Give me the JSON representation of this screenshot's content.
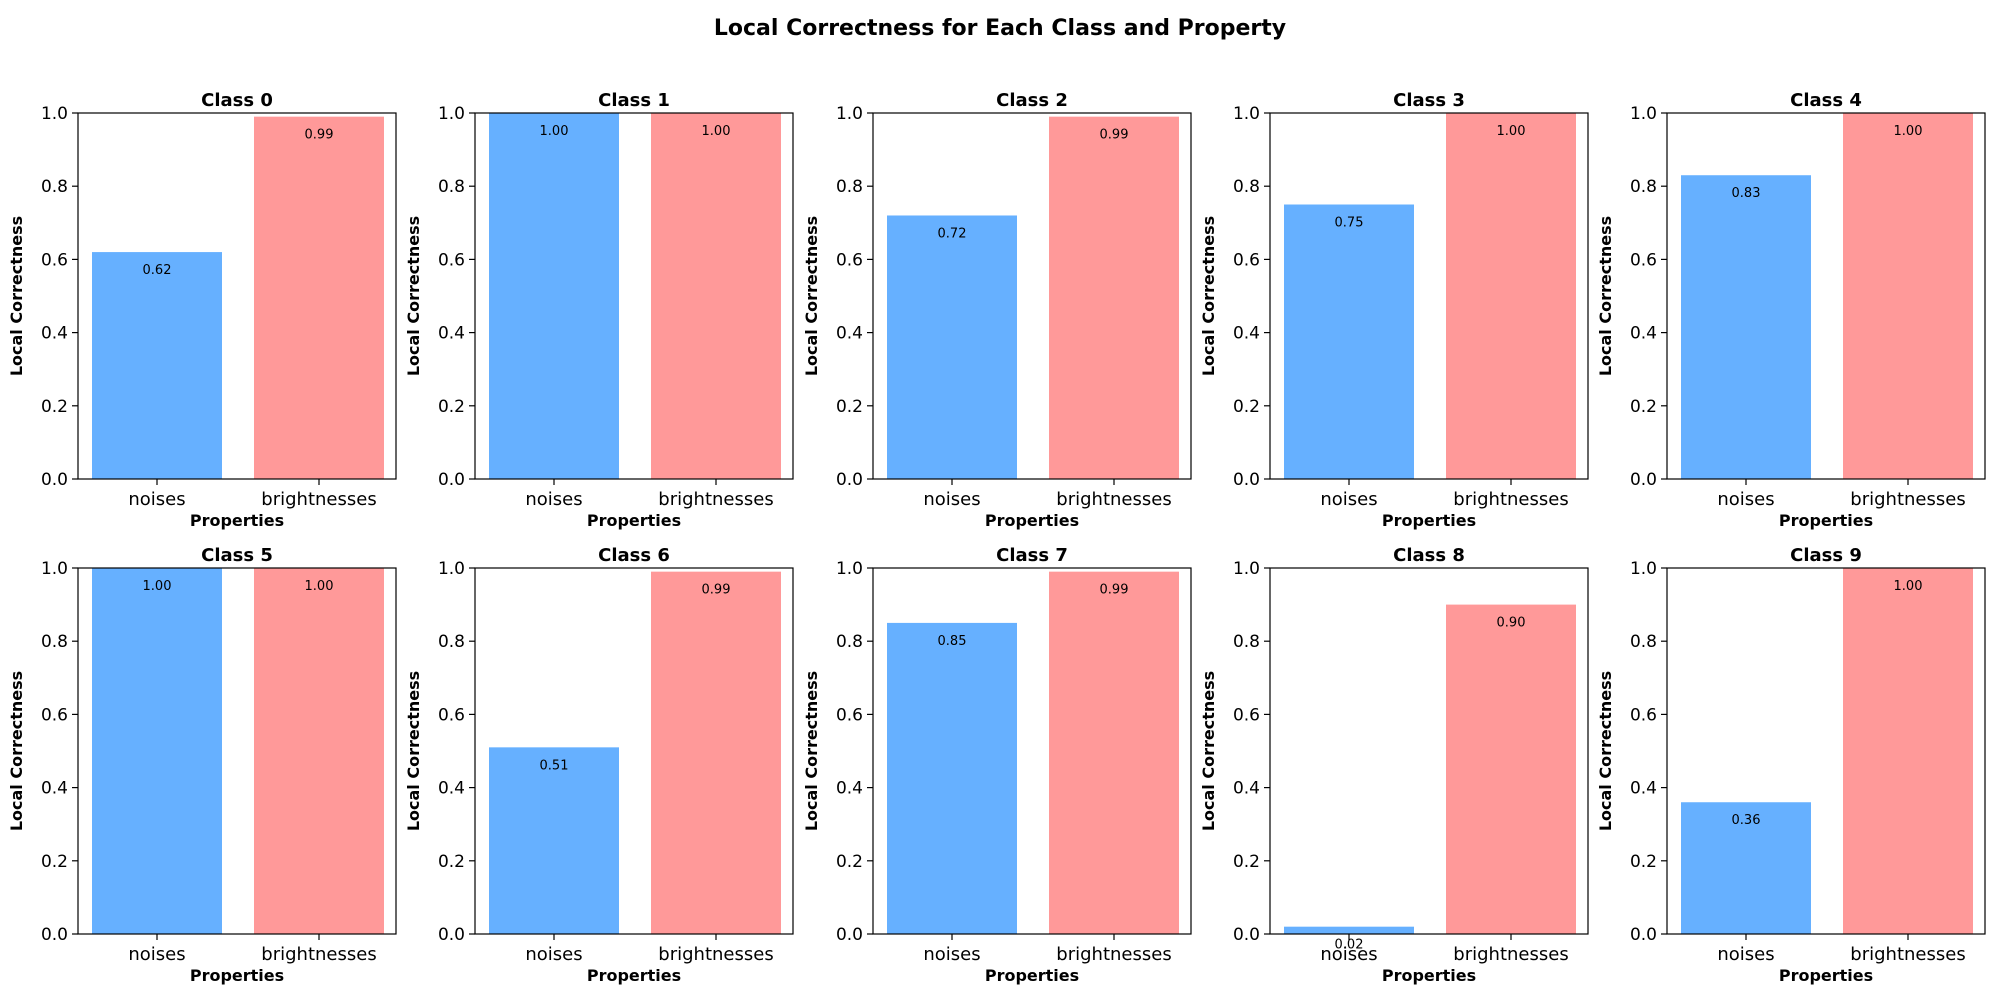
{
  "figure": {
    "title": "Local Correctness for Each Class and Property"
  },
  "colors": {
    "noises": "#66b0ff",
    "brightnesses": "#ff9999",
    "axis": "#000000"
  },
  "chart_data": [
    {
      "type": "bar",
      "title": "Class 0",
      "categories": [
        "noises",
        "brightnesses"
      ],
      "values": [
        0.62,
        0.99
      ],
      "value_labels": [
        "0.62",
        "0.99"
      ],
      "xlabel": "Properties",
      "ylabel": "Local Correctness",
      "ylim": [
        0,
        1.0
      ],
      "yticks": [
        "0.0",
        "0.2",
        "0.4",
        "0.6",
        "0.8",
        "1.0"
      ],
      "grid": false
    },
    {
      "type": "bar",
      "title": "Class 1",
      "categories": [
        "noises",
        "brightnesses"
      ],
      "values": [
        1.0,
        1.0
      ],
      "value_labels": [
        "1.00",
        "1.00"
      ],
      "xlabel": "Properties",
      "ylabel": "Local Correctness",
      "ylim": [
        0,
        1.0
      ],
      "yticks": [
        "0.0",
        "0.2",
        "0.4",
        "0.6",
        "0.8",
        "1.0"
      ],
      "grid": false
    },
    {
      "type": "bar",
      "title": "Class 2",
      "categories": [
        "noises",
        "brightnesses"
      ],
      "values": [
        0.72,
        0.99
      ],
      "value_labels": [
        "0.72",
        "0.99"
      ],
      "xlabel": "Properties",
      "ylabel": "Local Correctness",
      "ylim": [
        0,
        1.0
      ],
      "yticks": [
        "0.0",
        "0.2",
        "0.4",
        "0.6",
        "0.8",
        "1.0"
      ],
      "grid": false
    },
    {
      "type": "bar",
      "title": "Class 3",
      "categories": [
        "noises",
        "brightnesses"
      ],
      "values": [
        0.75,
        1.0
      ],
      "value_labels": [
        "0.75",
        "1.00"
      ],
      "xlabel": "Properties",
      "ylabel": "Local Correctness",
      "ylim": [
        0,
        1.0
      ],
      "yticks": [
        "0.0",
        "0.2",
        "0.4",
        "0.6",
        "0.8",
        "1.0"
      ],
      "grid": false
    },
    {
      "type": "bar",
      "title": "Class 4",
      "categories": [
        "noises",
        "brightnesses"
      ],
      "values": [
        0.83,
        1.0
      ],
      "value_labels": [
        "0.83",
        "1.00"
      ],
      "xlabel": "Properties",
      "ylabel": "Local Correctness",
      "ylim": [
        0,
        1.0
      ],
      "yticks": [
        "0.0",
        "0.2",
        "0.4",
        "0.6",
        "0.8",
        "1.0"
      ],
      "grid": false
    },
    {
      "type": "bar",
      "title": "Class 5",
      "categories": [
        "noises",
        "brightnesses"
      ],
      "values": [
        1.0,
        1.0
      ],
      "value_labels": [
        "1.00",
        "1.00"
      ],
      "xlabel": "Properties",
      "ylabel": "Local Correctness",
      "ylim": [
        0,
        1.0
      ],
      "yticks": [
        "0.0",
        "0.2",
        "0.4",
        "0.6",
        "0.8",
        "1.0"
      ],
      "grid": false
    },
    {
      "type": "bar",
      "title": "Class 6",
      "categories": [
        "noises",
        "brightnesses"
      ],
      "values": [
        0.51,
        0.99
      ],
      "value_labels": [
        "0.51",
        "0.99"
      ],
      "xlabel": "Properties",
      "ylabel": "Local Correctness",
      "ylim": [
        0,
        1.0
      ],
      "yticks": [
        "0.0",
        "0.2",
        "0.4",
        "0.6",
        "0.8",
        "1.0"
      ],
      "grid": false
    },
    {
      "type": "bar",
      "title": "Class 7",
      "categories": [
        "noises",
        "brightnesses"
      ],
      "values": [
        0.85,
        0.99
      ],
      "value_labels": [
        "0.85",
        "0.99"
      ],
      "xlabel": "Properties",
      "ylabel": "Local Correctness",
      "ylim": [
        0,
        1.0
      ],
      "yticks": [
        "0.0",
        "0.2",
        "0.4",
        "0.6",
        "0.8",
        "1.0"
      ],
      "grid": false
    },
    {
      "type": "bar",
      "title": "Class 8",
      "categories": [
        "noises",
        "brightnesses"
      ],
      "values": [
        0.02,
        0.9
      ],
      "value_labels": [
        "0.02",
        "0.90"
      ],
      "xlabel": "Properties",
      "ylabel": "Local Correctness",
      "ylim": [
        0,
        1.0
      ],
      "yticks": [
        "0.0",
        "0.2",
        "0.4",
        "0.6",
        "0.8",
        "1.0"
      ],
      "grid": false
    },
    {
      "type": "bar",
      "title": "Class 9",
      "categories": [
        "noises",
        "brightnesses"
      ],
      "values": [
        0.36,
        1.0
      ],
      "value_labels": [
        "0.36",
        "1.00"
      ],
      "xlabel": "Properties",
      "ylabel": "Local Correctness",
      "ylim": [
        0,
        1.0
      ],
      "yticks": [
        "0.0",
        "0.2",
        "0.4",
        "0.6",
        "0.8",
        "1.0"
      ],
      "grid": false
    }
  ]
}
